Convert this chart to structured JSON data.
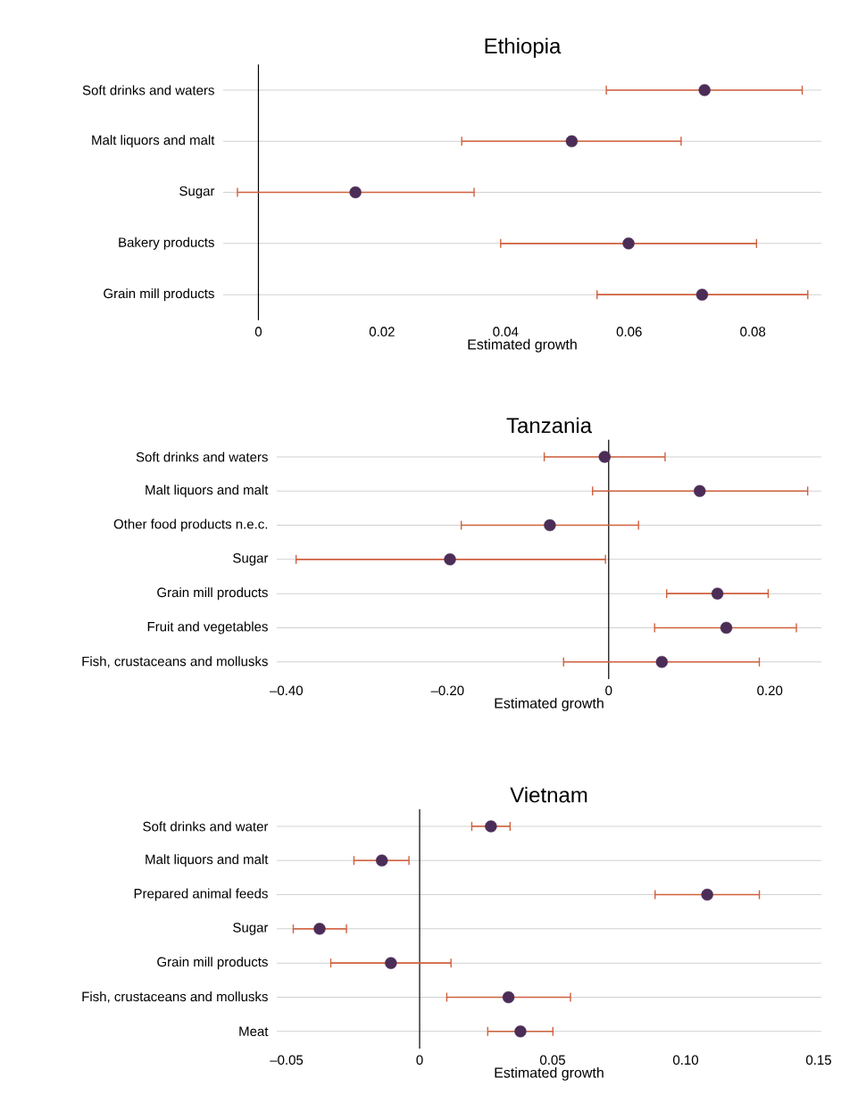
{
  "chart_data": [
    {
      "type": "scatter",
      "orientation": "horizontal",
      "title": "Ethiopia",
      "xlabel": "Estimated growth",
      "color": "#4b2d57",
      "marker": "circle",
      "grid": "y",
      "categories": [
        "Soft drinks and waters",
        "Malt liquors and malt",
        "Sugar",
        "Bakery products",
        "Grain mill products"
      ],
      "values": [
        0.0722,
        0.0507,
        0.0157,
        0.0599,
        0.0718
      ],
      "errors": [
        [
          0.0563,
          0.088
        ],
        [
          0.0329,
          0.0684
        ],
        [
          -0.0034,
          0.0349
        ],
        [
          0.0392,
          0.0806
        ],
        [
          0.0548,
          0.0889
        ]
      ],
      "xlim": [
        -0.0057,
        0.0911
      ],
      "xticks": [
        0,
        0.02,
        0.04,
        0.06,
        0.08
      ],
      "ref_lines": [
        {
          "axis": "x",
          "value": 0,
          "color": "#000000"
        }
      ]
    },
    {
      "type": "scatter",
      "orientation": "horizontal",
      "title": "Tanzania",
      "xlabel": "Estimated growth",
      "color": "#4b2d57",
      "marker": "circle",
      "grid": "y",
      "categories": [
        "Soft drinks and waters",
        "Malt liquors and malt",
        "Other food products n.e.c.",
        "Sugar",
        "Grain mill products",
        "Fruit and vegetables",
        "Fish, crustaceans and mollusks"
      ],
      "values": [
        -0.005,
        0.113,
        -0.073,
        -0.197,
        0.135,
        0.146,
        0.066
      ],
      "errors": [
        [
          -0.08,
          0.07
        ],
        [
          -0.02,
          0.247
        ],
        [
          -0.183,
          0.037
        ],
        [
          -0.388,
          -0.004
        ],
        [
          0.072,
          0.198
        ],
        [
          0.057,
          0.233
        ],
        [
          -0.056,
          0.187
        ]
      ],
      "xlim": [
        -0.412,
        0.264
      ],
      "xticks": [
        {
          "value": -0.4,
          "label": "–0.40"
        },
        {
          "value": -0.2,
          "label": "–0.20"
        },
        0,
        {
          "value": 0.2,
          "label": "0.20"
        }
      ],
      "ref_lines": [
        {
          "axis": "x",
          "value": 0,
          "color": "#000000"
        }
      ]
    },
    {
      "type": "scatter",
      "orientation": "horizontal",
      "title": "Vietnam",
      "xlabel": "Estimated growth",
      "color": "#4b2d57",
      "marker": "circle",
      "grid": "y",
      "categories": [
        "Soft drinks and water",
        "Malt liquors and malt",
        "Prepared animal feeds",
        "Sugar",
        "Grain mill products",
        "Fish, crustaceans and mollusks",
        "Meat"
      ],
      "values": [
        0.0268,
        -0.0142,
        0.1081,
        -0.0376,
        -0.0108,
        0.0334,
        0.0379
      ],
      "errors": [
        [
          0.0196,
          0.034
        ],
        [
          -0.0247,
          -0.004
        ],
        [
          0.0885,
          0.1277
        ],
        [
          -0.0475,
          -0.0275
        ],
        [
          -0.0334,
          0.0118
        ],
        [
          0.0102,
          0.0567
        ],
        [
          0.0256,
          0.0501
        ]
      ],
      "xlim": [
        -0.0537,
        0.151
      ],
      "xticks": [
        {
          "value": -0.05,
          "label": "–0.05"
        },
        0,
        0.05,
        {
          "value": 0.1,
          "label": "0.10"
        },
        {
          "value": 0.15,
          "label": "0.15"
        }
      ],
      "ref_lines": [
        {
          "axis": "x",
          "value": 0,
          "color": "#000000"
        }
      ]
    }
  ]
}
